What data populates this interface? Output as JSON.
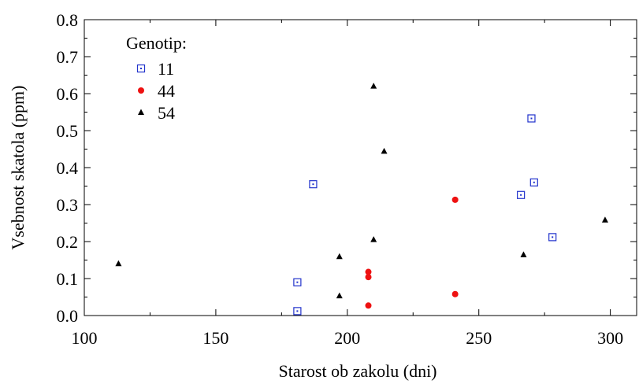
{
  "chart_data": {
    "type": "scatter",
    "xlabel": "Starost ob zakolu (dni)",
    "ylabel": "Vsebnost skatola (ppm)",
    "xlim": [
      100,
      310
    ],
    "ylim": [
      0,
      0.8
    ],
    "xticks": [
      100,
      150,
      200,
      250,
      300
    ],
    "yticks": [
      0.0,
      0.1,
      0.2,
      0.3,
      0.4,
      0.5,
      0.6,
      0.7,
      0.8
    ],
    "ytick_labels": [
      "0.0",
      "0.1",
      "0.2",
      "0.3",
      "0.4",
      "0.5",
      "0.6",
      "0.7",
      "0.8"
    ],
    "legend": {
      "title": "Genotip:",
      "position": "top-left"
    },
    "grid": false,
    "series": [
      {
        "name": "11",
        "color": "#2233cc",
        "marker": "open-square",
        "points": [
          {
            "x": 181,
            "y": 0.012
          },
          {
            "x": 181,
            "y": 0.09
          },
          {
            "x": 187,
            "y": 0.355
          },
          {
            "x": 266,
            "y": 0.326
          },
          {
            "x": 270,
            "y": 0.533
          },
          {
            "x": 271,
            "y": 0.36
          },
          {
            "x": 278,
            "y": 0.212
          }
        ]
      },
      {
        "name": "44",
        "color": "#ee1111",
        "marker": "circle",
        "points": [
          {
            "x": 208,
            "y": 0.027
          },
          {
            "x": 208,
            "y": 0.104
          },
          {
            "x": 208,
            "y": 0.118
          },
          {
            "x": 241,
            "y": 0.058
          },
          {
            "x": 241,
            "y": 0.313
          }
        ]
      },
      {
        "name": "54",
        "color": "#000000",
        "marker": "triangle",
        "points": [
          {
            "x": 113,
            "y": 0.14
          },
          {
            "x": 197,
            "y": 0.053
          },
          {
            "x": 197,
            "y": 0.159
          },
          {
            "x": 210,
            "y": 0.205
          },
          {
            "x": 210,
            "y": 0.62
          },
          {
            "x": 214,
            "y": 0.444
          },
          {
            "x": 267,
            "y": 0.164
          },
          {
            "x": 298,
            "y": 0.258
          }
        ]
      }
    ]
  }
}
